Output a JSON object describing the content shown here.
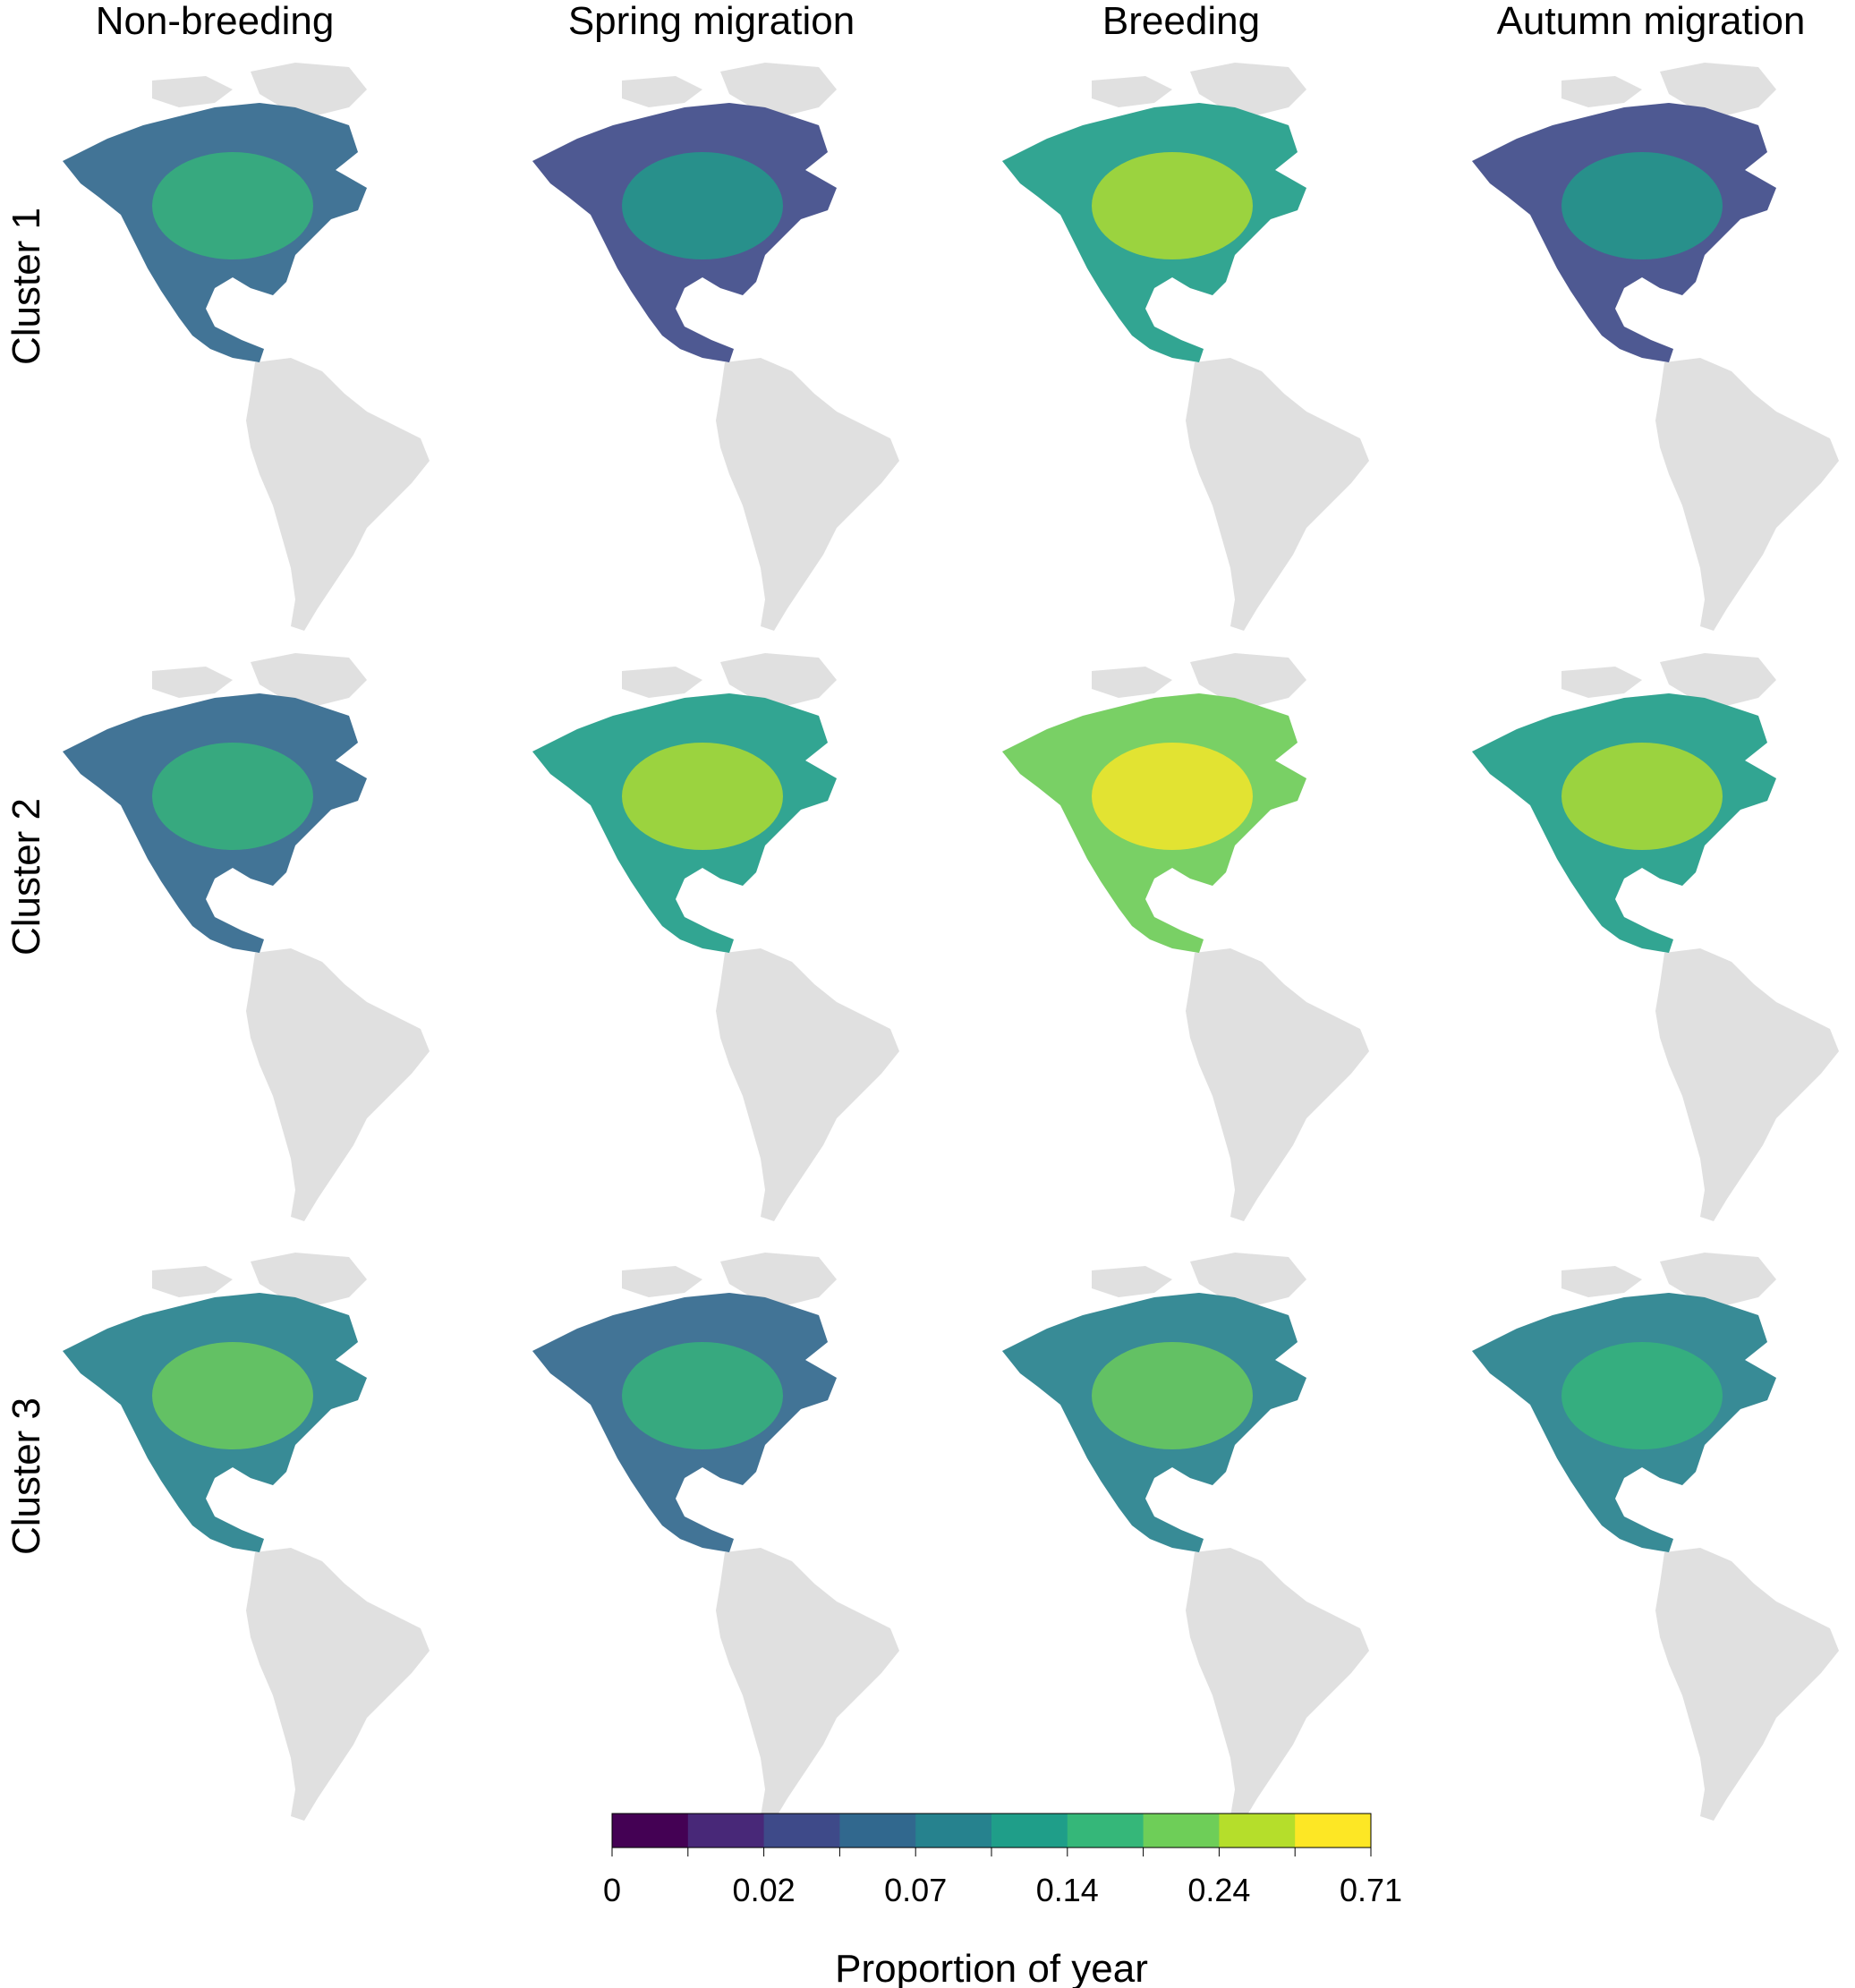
{
  "columns": [
    "Non-breeding",
    "Spring migration",
    "Breeding",
    "Autumn migration"
  ],
  "rows": [
    "Cluster 1",
    "Cluster 2",
    "Cluster 3"
  ],
  "map": {
    "land_color": "#e0e0e0",
    "panels": [
      [
        0.35,
        0.25,
        0.55,
        0.25
      ],
      [
        0.35,
        0.55,
        0.75,
        0.6
      ],
      [
        0.45,
        0.35,
        0.45,
        0.4
      ]
    ]
  },
  "legend": {
    "title": "Proportion of year",
    "tick_labels": [
      "0",
      "0.02",
      "0.07",
      "0.14",
      "0.24",
      "0.71"
    ],
    "colors": [
      "#440154",
      "#482878",
      "#3e4a89",
      "#31688e",
      "#26828e",
      "#1f9e89",
      "#35b779",
      "#6ece58",
      "#b5de2b",
      "#fde725"
    ]
  }
}
